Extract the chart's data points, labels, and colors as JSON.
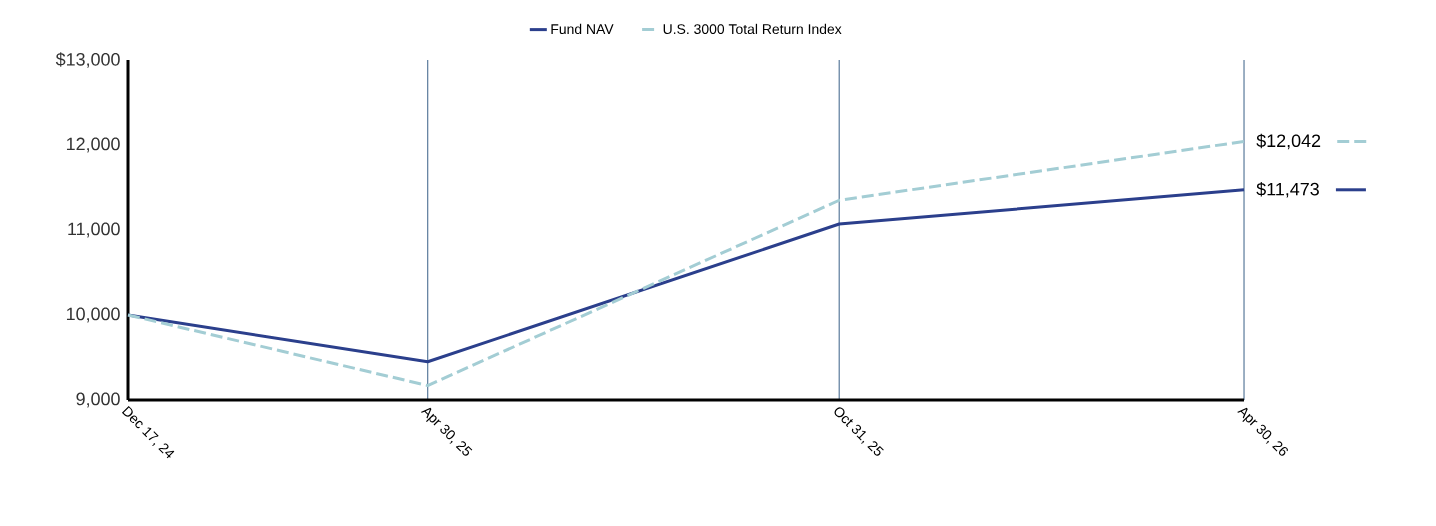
{
  "chart_data": {
    "type": "line",
    "x": [
      "2024-12-17",
      "2025-04-30",
      "2025-10-31",
      "2026-04-30"
    ],
    "series": [
      {
        "name": "Fund NAV",
        "color": "#2b3f8c",
        "line_style": "solid",
        "values": [
          10000,
          9450,
          11070,
          11473
        ],
        "value_labels": [
          null,
          null,
          null,
          "$11,473"
        ]
      },
      {
        "name": "U.S. 3000 Total Return Index",
        "color": "#a3cdd4",
        "line_style": "dashed",
        "values": [
          10000,
          9170,
          11350,
          12042
        ],
        "value_labels": [
          null,
          null,
          null,
          "$12,042"
        ]
      }
    ],
    "xlim": [
      "2024-12-17",
      "2026-04-30"
    ],
    "xticks": [
      {
        "value": "2024-12-17",
        "label": "Dec 17, 24"
      },
      {
        "value": "2025-04-30",
        "label": "Apr 30, 25"
      },
      {
        "value": "2025-10-31",
        "label": "Oct 31, 25"
      },
      {
        "value": "2026-04-30",
        "label": "Apr 30, 26"
      }
    ],
    "ylim": [
      9000,
      13000
    ],
    "yticks": [
      {
        "value": 9000,
        "label": "9,000"
      },
      {
        "value": 10000,
        "label": "10,000"
      },
      {
        "value": 11000,
        "label": "11,000"
      },
      {
        "value": 12000,
        "label": "12,000"
      },
      {
        "value": 13000,
        "label": "$13,000"
      }
    ],
    "grid": "x",
    "legend": "top",
    "marker": "none"
  }
}
